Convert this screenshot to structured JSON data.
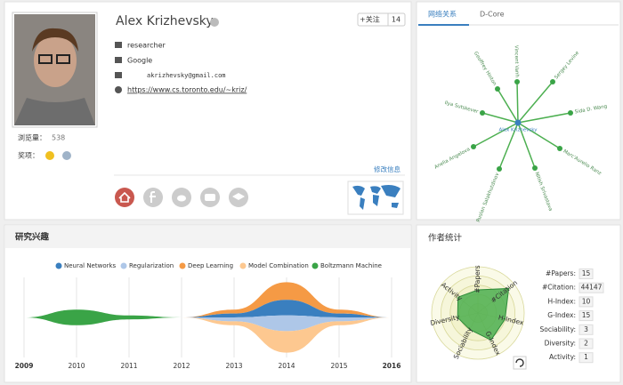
{
  "profile": {
    "name": "Alex Krizhevsky",
    "follow": "+关注",
    "followers": "14",
    "position": "researcher",
    "affiliation": "Google",
    "email": "akrizhevsky@gmail.com",
    "homepage": "https://www.cs.toronto.edu/~kriz/",
    "views_label": "浏览量：",
    "views": "538",
    "awards_label": "奖项：",
    "edit": "修改信息"
  },
  "tabs": [
    "网络关系",
    "D-Core"
  ],
  "network": {
    "center": "Alex Krizhevsky",
    "nodes": [
      "Vincent Vanh",
      "Sergey Levine",
      "Sida D. Wang",
      "Marc'Aurelio Ranz",
      "Nitish Srivastava",
      "Ruslan Salakhutdinov",
      "Anelia Angelova",
      "Ilya Sutskever",
      "Geoffrey Hinton"
    ]
  },
  "chart_data": [
    {
      "type": "streamgraph",
      "title": "研究兴趣",
      "x": [
        2009,
        2010,
        2011,
        2012,
        2013,
        2014,
        2015,
        2016
      ],
      "xlim": [
        2009,
        2016
      ],
      "xticks": [
        2009,
        2010,
        2011,
        2012,
        2013,
        2014,
        2015,
        2016
      ],
      "grid": true,
      "series": [
        {
          "name": "Neural Networks",
          "color": "#3a7fbf",
          "values": [
            0,
            0,
            0,
            0,
            2,
            8,
            2,
            0
          ]
        },
        {
          "name": "Regularization",
          "color": "#aec7e8",
          "values": [
            0,
            0,
            0,
            0,
            2,
            8,
            2,
            0
          ]
        },
        {
          "name": "Deep Learning",
          "color": "#f59a45",
          "values": [
            0,
            0,
            0,
            0,
            2,
            9,
            2,
            0
          ]
        },
        {
          "name": "Model Combination",
          "color": "#fdc890",
          "values": [
            0,
            0,
            0,
            0,
            2,
            11,
            2,
            0
          ]
        },
        {
          "name": "Boltzmann Machine",
          "color": "#3aa447",
          "values": [
            0,
            8,
            2,
            0,
            0,
            0,
            0,
            0
          ]
        }
      ]
    },
    {
      "type": "radar",
      "title": "作者统计",
      "axes": [
        "#Papers",
        "#Citation",
        "H-Index",
        "G-Index",
        "Sociability",
        "Diversity",
        "Activity"
      ],
      "values": [
        0.5,
        0.85,
        0.6,
        0.65,
        0.4,
        0.45,
        0.55
      ],
      "rlim": [
        0,
        1
      ],
      "rticks": [
        0.2,
        0.4,
        0.6,
        0.8,
        1
      ],
      "color": "#4caf50"
    }
  ],
  "stats": [
    {
      "label": "#Papers:",
      "value": "15"
    },
    {
      "label": "#Citation:",
      "value": "44147"
    },
    {
      "label": "H-Index:",
      "value": "10"
    },
    {
      "label": "G-Index:",
      "value": "15"
    },
    {
      "label": "Sociability:",
      "value": "3"
    },
    {
      "label": "Diversity:",
      "value": "2"
    },
    {
      "label": "Activity:",
      "value": "1"
    }
  ]
}
